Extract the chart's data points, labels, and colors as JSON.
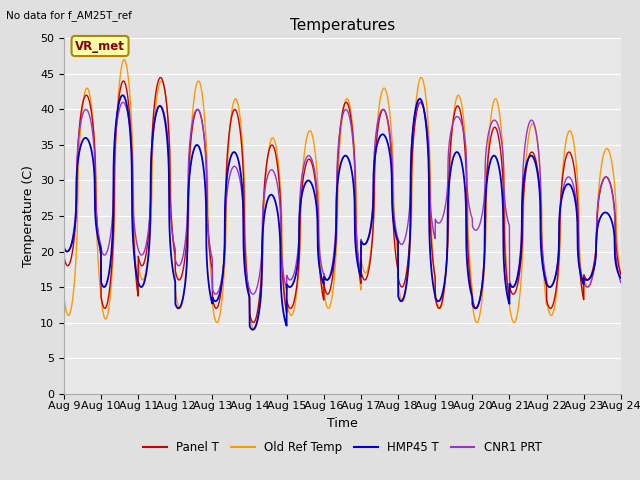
{
  "title": "Temperatures",
  "xlabel": "Time",
  "ylabel": "Temperature (C)",
  "no_data_text": "No data for f_AM25T_ref",
  "annotation_text": "VR_met",
  "x_tick_labels": [
    "Aug 9",
    "Aug 10",
    "Aug 11",
    "Aug 12",
    "Aug 13",
    "Aug 14",
    "Aug 15",
    "Aug 16",
    "Aug 17",
    "Aug 18",
    "Aug 19",
    "Aug 20",
    "Aug 21",
    "Aug 22",
    "Aug 23",
    "Aug 24"
  ],
  "ylim": [
    0,
    50
  ],
  "y_ticks": [
    0,
    5,
    10,
    15,
    20,
    25,
    30,
    35,
    40,
    45,
    50
  ],
  "bg_color": "#e0e0e0",
  "plot_bg_color": "#e8e8e8",
  "legend": [
    {
      "label": "Panel T",
      "color": "#cc0000"
    },
    {
      "label": "Old Ref Temp",
      "color": "#ff9900"
    },
    {
      "label": "HMP45 T",
      "color": "#0000cc"
    },
    {
      "label": "CNR1 PRT",
      "color": "#9933cc"
    }
  ],
  "title_fontsize": 11,
  "axis_fontsize": 9,
  "tick_fontsize": 8,
  "num_days": 15,
  "panel_t_peaks": [
    42,
    44,
    44.5,
    40,
    40,
    35,
    33,
    41,
    40,
    41,
    40.5,
    37.5,
    34,
    34,
    30.5
  ],
  "panel_t_troughs": [
    18,
    12,
    18,
    16,
    12,
    10,
    12,
    14,
    16,
    15,
    12,
    12,
    14,
    12,
    16
  ],
  "old_ref_peaks": [
    43,
    47,
    44,
    44,
    41.5,
    36,
    37,
    41.5,
    43,
    44.5,
    42,
    41.5,
    38,
    37,
    34.5
  ],
  "old_ref_troughs": [
    11,
    10.5,
    16,
    12,
    10,
    9,
    11,
    12,
    17,
    13,
    12,
    10,
    10,
    11,
    15
  ],
  "hmp45_peaks": [
    36,
    42,
    40.5,
    35,
    34,
    28,
    30,
    33.5,
    36.5,
    41.5,
    34,
    33.5,
    33.5,
    29.5,
    25.5
  ],
  "hmp45_troughs": [
    20,
    15,
    15,
    12,
    13,
    9,
    15,
    16,
    21,
    13,
    13,
    12,
    15,
    15,
    16
  ],
  "cnr1_peaks": [
    40,
    41,
    40.5,
    40,
    32,
    31.5,
    33.5,
    40,
    40,
    41,
    39,
    38.5,
    38.5,
    30.5,
    30.5
  ],
  "cnr1_troughs": [
    20,
    19.5,
    19.5,
    18,
    14,
    14,
    16,
    16,
    21,
    21,
    24,
    23,
    15,
    15,
    15
  ]
}
